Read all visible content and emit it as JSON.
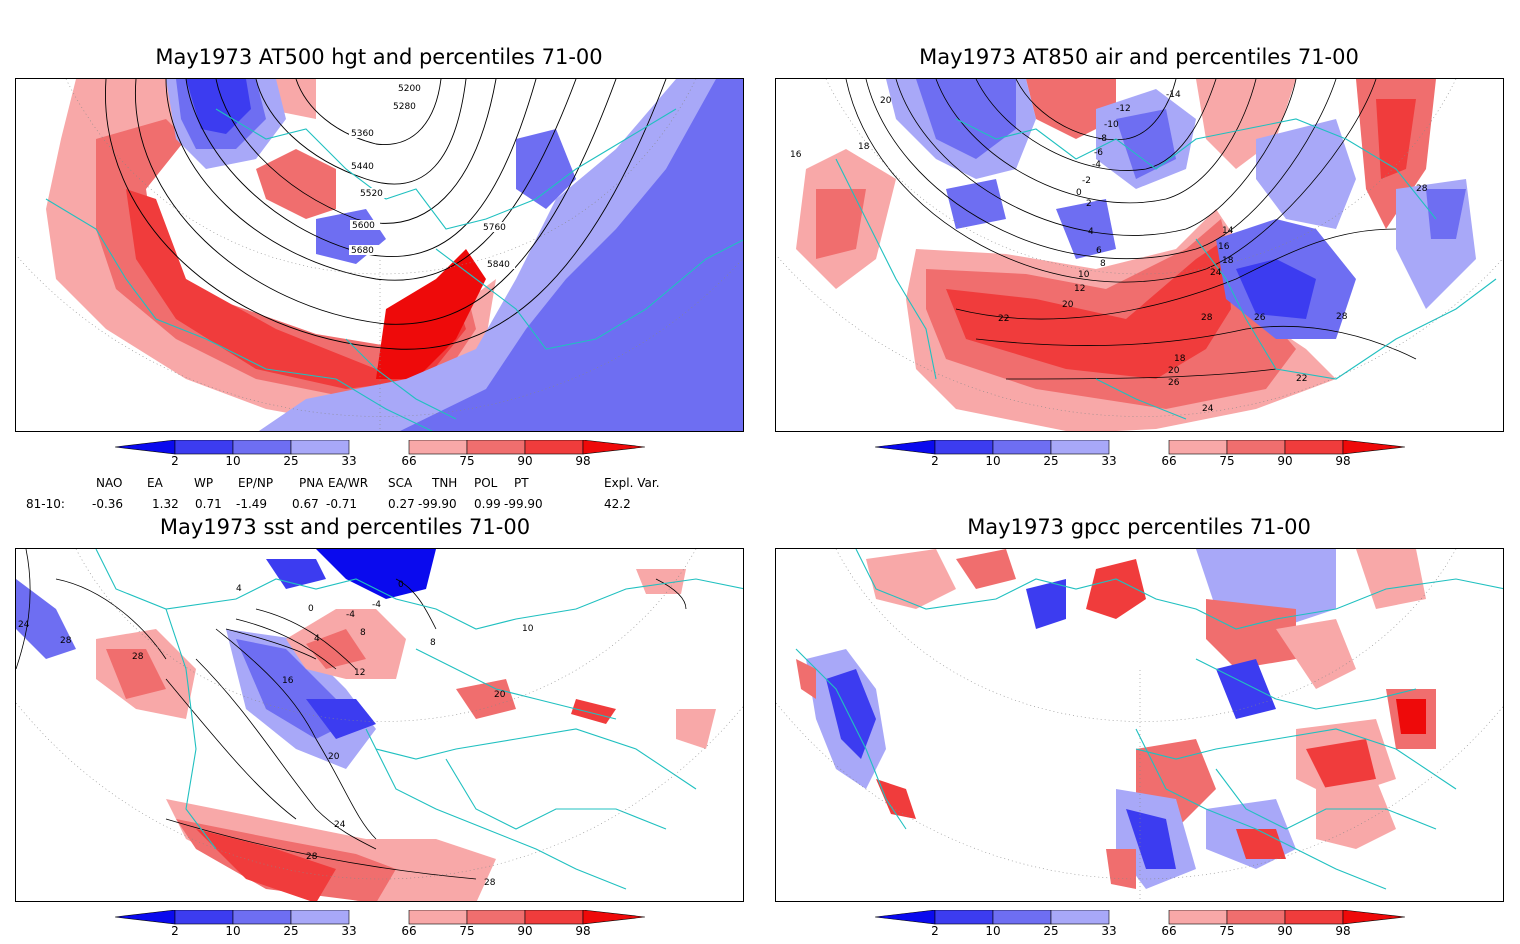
{
  "panels": [
    {
      "title": "May1973 AT500 hgt and percentiles 71-00",
      "contour_labels": [
        "5200",
        "5280",
        "5360",
        "5440",
        "5520",
        "5600",
        "5680",
        "5760",
        "5840"
      ]
    },
    {
      "title": "May1973 AT850 air and percentiles 71-00",
      "contour_labels": [
        "20",
        "18",
        "16",
        "-14",
        "-12",
        "-10",
        "-8",
        "-6",
        "-4",
        "-2",
        "0",
        "2",
        "4",
        "6",
        "8",
        "10",
        "12",
        "14",
        "16",
        "18",
        "20",
        "22",
        "24",
        "26",
        "28",
        "18",
        "20",
        "26",
        "24",
        "22",
        "28",
        "28"
      ]
    },
    {
      "title": "May1973 sst and percentiles 71-00",
      "contour_labels": [
        "24",
        "28",
        "28",
        "4",
        "0",
        "0",
        "-4",
        "4",
        "8",
        "12",
        "16",
        "20",
        "24",
        "28",
        "28",
        "20",
        "10",
        "8",
        "-4"
      ]
    },
    {
      "title": "May1973 gpcc percentiles 71-00",
      "contour_labels": []
    }
  ],
  "colorbar": {
    "ticks": [
      "2",
      "10",
      "25",
      "33",
      "66",
      "75",
      "90",
      "98"
    ],
    "colors": {
      "b1": "#0a0aee",
      "b2": "#3c3cf0",
      "b3": "#6e6ef2",
      "b4": "#a8a8f8",
      "r1": "#f8a8a8",
      "r2": "#f06e6e",
      "r3": "#f03c3c",
      "r4": "#ee0a0a"
    }
  },
  "indices": {
    "headers": [
      "NAO",
      "EA",
      "WP",
      "EP/NP",
      "PNA",
      "EA/WR",
      "SCA",
      "TNH",
      "POL",
      "PT",
      "Expl. Var."
    ],
    "row_label": "81-10:",
    "values": [
      "-0.36",
      "1.32",
      "0.71",
      "-1.49",
      "0.67",
      "-0.71",
      "0.27",
      "-99.90",
      "0.99",
      "-99.90",
      "42.2"
    ]
  },
  "colors": {
    "coast": "#20c0c0",
    "blue": "#6e6ef2",
    "red": "#f03c3c"
  }
}
